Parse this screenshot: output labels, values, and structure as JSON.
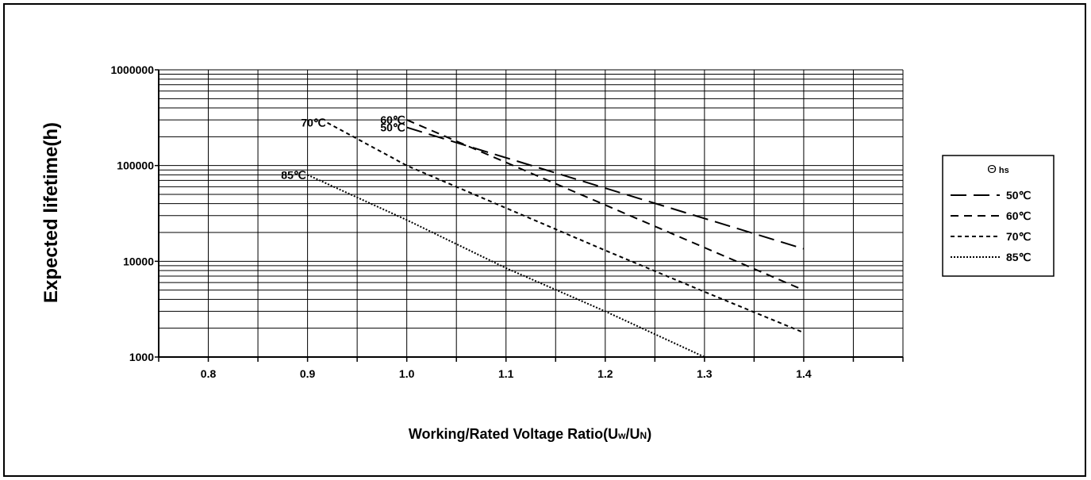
{
  "chart_data": {
    "type": "line",
    "xlabel": "Working/Rated Voltage Ratio(Uw/UN)",
    "ylabel": "Expected lifetime(h)",
    "y_scale": "log",
    "xlim": [
      0.75,
      1.5
    ],
    "ylim": [
      1000,
      1000000
    ],
    "x_ticks": [
      0.8,
      0.9,
      1.0,
      1.1,
      1.2,
      1.3,
      1.4
    ],
    "x_tick_labels": [
      "0.8",
      "0.9",
      "1.0",
      "1.1",
      "1.2",
      "1.3",
      "1.4"
    ],
    "y_ticks": [
      1000,
      10000,
      100000,
      1000000
    ],
    "y_tick_labels": [
      "1000",
      "10000",
      "100000",
      "1000000"
    ],
    "grid": true,
    "legend": {
      "title": "Θ hs",
      "placement": "right"
    },
    "series": [
      {
        "name": "50℃",
        "curve_label": "50℃",
        "dash": "long-dash",
        "x": [
          1.0,
          1.4
        ],
        "y": [
          250000,
          13500
        ]
      },
      {
        "name": "60℃",
        "curve_label": "60℃",
        "dash": "dash",
        "x": [
          1.0,
          1.4
        ],
        "y": [
          300000,
          5000
        ]
      },
      {
        "name": "70℃",
        "curve_label": "70℃",
        "dash": "short-dash",
        "x": [
          0.92,
          1.0,
          1.1,
          1.2,
          1.3,
          1.4
        ],
        "y": [
          280000,
          100000,
          36000,
          13000,
          4800,
          1800
        ]
      },
      {
        "name": "85℃",
        "curve_label": "85℃",
        "dash": "dot",
        "x": [
          0.9,
          1.0,
          1.1,
          1.2,
          1.3
        ],
        "y": [
          80000,
          27000,
          8500,
          3000,
          1000
        ]
      }
    ]
  }
}
